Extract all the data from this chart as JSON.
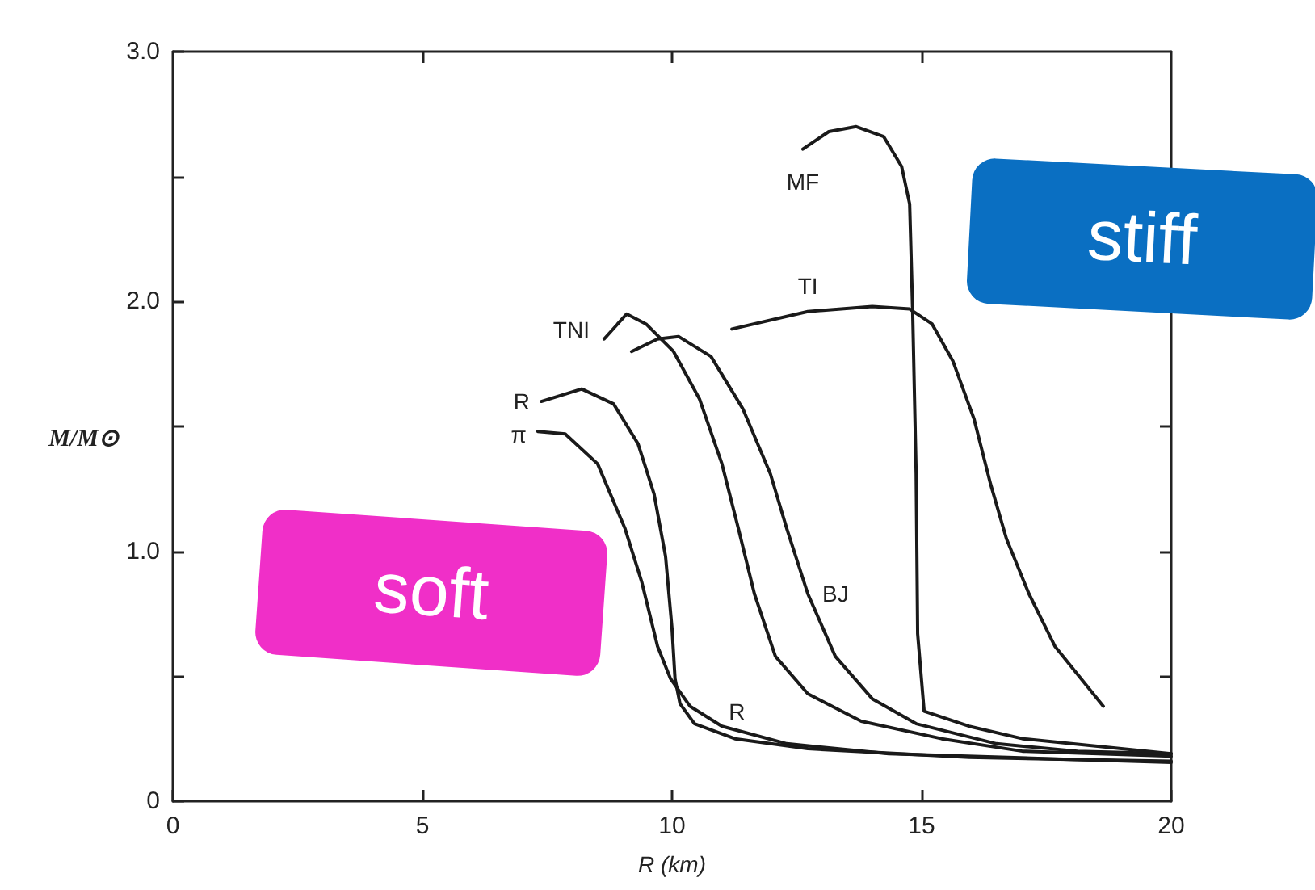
{
  "chart_data": {
    "type": "line",
    "xlabel": "R (km)",
    "ylabel": "M/M⊙",
    "xlim": [
      0,
      20
    ],
    "xticks": [
      0,
      5,
      10,
      15,
      20
    ],
    "ylim": [
      0,
      3
    ],
    "yticks": [
      0,
      {
        "value": 0.5,
        "label": null
      },
      {
        "value": 1,
        "label": "1.0"
      },
      {
        "value": 1.5,
        "label": null
      },
      {
        "value": 2,
        "label": "2.0"
      },
      {
        "value": 2.5,
        "label": null
      },
      {
        "value": 3,
        "label": "3.0"
      }
    ],
    "grid": false,
    "legend": false,
    "marker": "none",
    "line_style": "solid",
    "series": [
      {
        "name": "π",
        "color": "#1a1a1a",
        "x": [
          7.31,
          7.86,
          8.51,
          9.06,
          9.39,
          9.71,
          9.97,
          10.36,
          11.0,
          12.3,
          14.34,
          17.57,
          20.0
        ],
        "values": [
          1.48,
          1.47,
          1.35,
          1.09,
          0.88,
          0.62,
          0.49,
          0.38,
          0.3,
          0.23,
          0.19,
          0.17,
          0.155
        ]
      },
      {
        "name": "R",
        "color": "#1a1a1a",
        "x": [
          7.38,
          8.19,
          8.83,
          9.32,
          9.64,
          9.87,
          10.0,
          10.06,
          10.16,
          10.45,
          11.26,
          12.72,
          15.95,
          20.0
        ],
        "values": [
          1.6,
          1.65,
          1.59,
          1.43,
          1.23,
          0.98,
          0.69,
          0.49,
          0.39,
          0.31,
          0.25,
          0.21,
          0.175,
          0.16
        ]
      },
      {
        "name": "TNI",
        "color": "#1a1a1a",
        "x": [
          8.64,
          9.09,
          9.48,
          10.03,
          10.55,
          11.0,
          11.33,
          11.65,
          12.07,
          12.72,
          13.79,
          15.4,
          17.02,
          20.0
        ],
        "values": [
          1.85,
          1.95,
          1.91,
          1.8,
          1.61,
          1.35,
          1.09,
          0.83,
          0.58,
          0.43,
          0.32,
          0.25,
          0.2,
          0.18
        ]
      },
      {
        "name": "BJ",
        "color": "#1a1a1a",
        "x": [
          9.19,
          9.71,
          10.13,
          10.78,
          11.42,
          11.97,
          12.3,
          12.72,
          13.27,
          14.01,
          14.89,
          16.5,
          18.12,
          20.0
        ],
        "values": [
          1.8,
          1.85,
          1.86,
          1.78,
          1.57,
          1.31,
          1.09,
          0.83,
          0.58,
          0.41,
          0.31,
          0.23,
          0.2,
          0.19
        ]
      },
      {
        "name": "TI",
        "color": "#1a1a1a",
        "x": [
          11.2,
          12.72,
          14.01,
          14.76,
          15.21,
          15.63,
          16.05,
          16.38,
          16.7,
          17.15,
          17.67,
          18.64
        ],
        "values": [
          1.89,
          1.96,
          1.98,
          1.97,
          1.91,
          1.76,
          1.53,
          1.27,
          1.05,
          0.83,
          0.62,
          0.38
        ]
      },
      {
        "name": "MF",
        "color": "#1a1a1a",
        "x": [
          12.62,
          13.14,
          13.69,
          14.24,
          14.6,
          14.76,
          14.82,
          14.89,
          14.92,
          15.05,
          15.95,
          17.02,
          20.0
        ],
        "values": [
          2.61,
          2.68,
          2.7,
          2.66,
          2.54,
          2.39,
          1.96,
          1.31,
          0.67,
          0.36,
          0.3,
          0.25,
          0.19
        ]
      }
    ],
    "annotations": [
      "soft",
      "stiff",
      {
        "text": "R",
        "x": 11.3,
        "y": 0.25
      }
    ]
  }
}
